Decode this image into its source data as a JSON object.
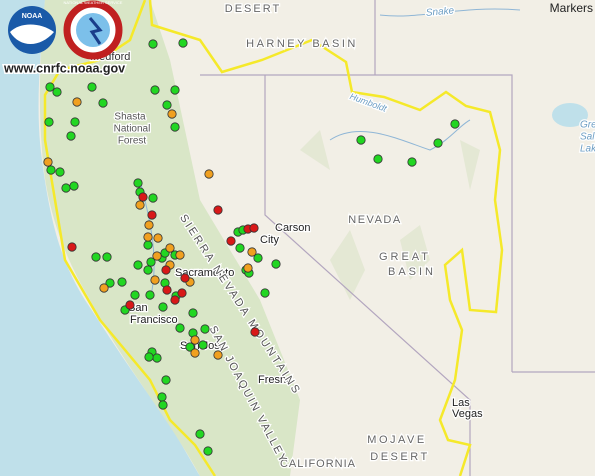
{
  "header": {
    "logo_noaa": "NOAA",
    "logo_nws": "NATIONAL WEATHER SERVICE",
    "site": "www.cnrfc.noaa.gov"
  },
  "toolbar": {
    "markers": "Markers"
  },
  "map": {
    "labels": [
      "DESERT",
      "HARNEY BASIN",
      "Snake",
      "Medford",
      "Shasta",
      "National",
      "Forest",
      "Humboldt",
      "Great",
      "Salt",
      "Lake",
      "NEVADA",
      "GREAT",
      "BASIN",
      "Carson",
      "City",
      "Sacramento",
      "San",
      "Francisco",
      "San Jose",
      "Fresno",
      "Las",
      "Vegas",
      "MOJAVE",
      "DESERT",
      "CALIFORNIA",
      "SIERRA NEVADA MOUNTAINS",
      "SAN JOAQUIN VALLEY"
    ]
  }
}
